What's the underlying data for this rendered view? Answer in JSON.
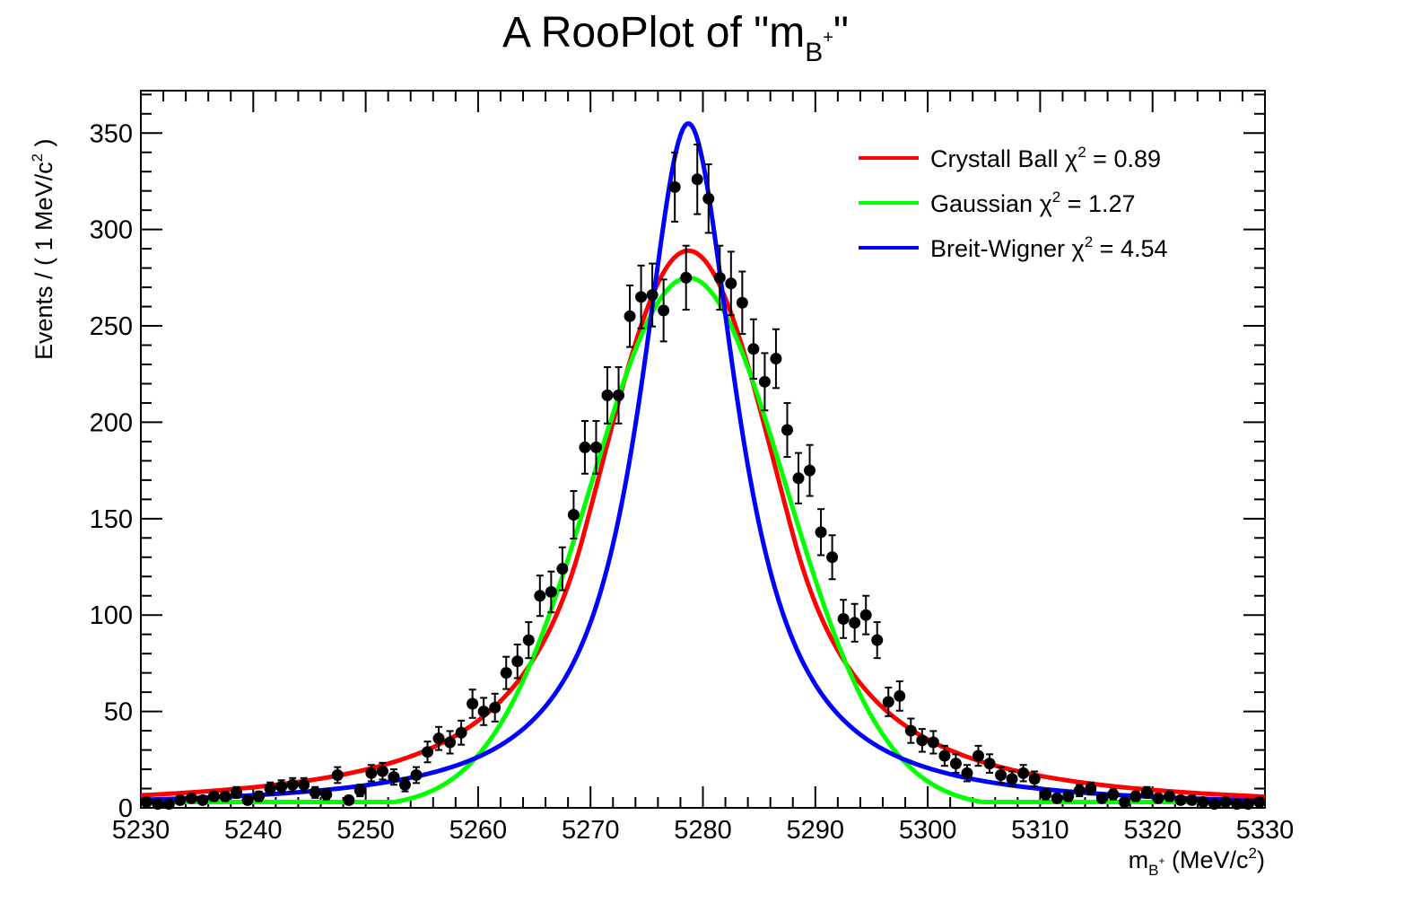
{
  "chart_data": {
    "type": "line",
    "title": "A RooPlot of \"m",
    "title_sub": "B",
    "title_sup": "+",
    "title_end": "\"",
    "xlabel_prefix": "m",
    "xlabel_sub": "B",
    "xlabel_sup": "+",
    "xlabel_units": " (MeV/c",
    "xlabel_units_sup": "2",
    "xlabel_units_end": ")",
    "ylabel": "Events / ( 1 MeV/c",
    "ylabel_sup": "2",
    "ylabel_end": " )",
    "xlim": [
      5230,
      5330
    ],
    "ylim": [
      0,
      372
    ],
    "x_ticks": [
      5230,
      5240,
      5250,
      5260,
      5270,
      5280,
      5290,
      5300,
      5310,
      5320,
      5330
    ],
    "y_ticks": [
      0,
      50,
      100,
      150,
      200,
      250,
      300,
      350
    ],
    "legend": {
      "position": "top-right",
      "entries": [
        {
          "label": "Crystall Ball χ",
          "sup": "2",
          "value": " = 0.89",
          "color": "#ff0000"
        },
        {
          "label": "Gaussian χ",
          "sup": "2",
          "value": " = 1.27",
          "color": "#00ff00"
        },
        {
          "label": "Breit-Wigner χ",
          "sup": "2",
          "value": " = 4.54",
          "color": "#0000ff"
        }
      ]
    },
    "data_points": {
      "name": "data",
      "color": "#000000",
      "x": [
        5230.5,
        5231.5,
        5232.5,
        5233.5,
        5234.5,
        5235.5,
        5236.5,
        5237.5,
        5238.5,
        5239.5,
        5240.5,
        5241.5,
        5242.5,
        5243.5,
        5244.5,
        5245.5,
        5246.5,
        5247.5,
        5248.5,
        5249.5,
        5250.5,
        5251.5,
        5252.5,
        5253.5,
        5254.5,
        5255.5,
        5256.5,
        5257.5,
        5258.5,
        5259.5,
        5260.5,
        5261.5,
        5262.5,
        5263.5,
        5264.5,
        5265.5,
        5266.5,
        5267.5,
        5268.5,
        5269.5,
        5270.5,
        5271.5,
        5272.5,
        5273.5,
        5274.5,
        5275.5,
        5276.5,
        5277.5,
        5278.5,
        5279.5,
        5280.5,
        5281.5,
        5282.5,
        5283.5,
        5284.5,
        5285.5,
        5286.5,
        5287.5,
        5288.5,
        5289.5,
        5290.5,
        5291.5,
        5292.5,
        5293.5,
        5294.5,
        5295.5,
        5296.5,
        5297.5,
        5298.5,
        5299.5,
        5300.5,
        5301.5,
        5302.5,
        5303.5,
        5304.5,
        5305.5,
        5306.5,
        5307.5,
        5308.5,
        5309.5,
        5310.5,
        5311.5,
        5312.5,
        5313.5,
        5314.5,
        5315.5,
        5316.5,
        5317.5,
        5318.5,
        5319.5,
        5320.5,
        5321.5,
        5322.5,
        5323.5,
        5324.5,
        5325.5,
        5326.5,
        5327.5,
        5328.5,
        5329.5
      ],
      "y": [
        3,
        2,
        2,
        4,
        5,
        4,
        6,
        6,
        8,
        4,
        6,
        10,
        11,
        12,
        12,
        8,
        7,
        17,
        4,
        9,
        18,
        19,
        16,
        12,
        17,
        29,
        36,
        34,
        39,
        54,
        50,
        52,
        70,
        76,
        87,
        110,
        112,
        124,
        152,
        187,
        187,
        214,
        214,
        255,
        265,
        266,
        258,
        322,
        275,
        326,
        316,
        275,
        272,
        262,
        238,
        221,
        233,
        196,
        171,
        175,
        143,
        130,
        98,
        96,
        100,
        87,
        55,
        58,
        40,
        35,
        34,
        27,
        23,
        18,
        27,
        23,
        17,
        15,
        18,
        15,
        7,
        5,
        6,
        9,
        10,
        5,
        7,
        3,
        6,
        8,
        5,
        6,
        4,
        4,
        3,
        2,
        3,
        2,
        2,
        3
      ]
    },
    "series": [
      {
        "name": "Crystall Ball",
        "color": "#ff0000",
        "model": "crystalball",
        "mean": 5278.7,
        "sigma": 7.8,
        "alpha": 1.2,
        "n": 2.5,
        "peak": 289,
        "tail_mult": 1.0
      },
      {
        "name": "Gaussian",
        "color": "#00ff00",
        "model": "gaussian",
        "mean": 5278.7,
        "sigma": 8.7,
        "peak": 275
      },
      {
        "name": "Breit-Wigner",
        "color": "#0000ff",
        "model": "breitwigner",
        "mean": 5278.7,
        "gamma": 10.6,
        "peak": 355
      }
    ]
  }
}
